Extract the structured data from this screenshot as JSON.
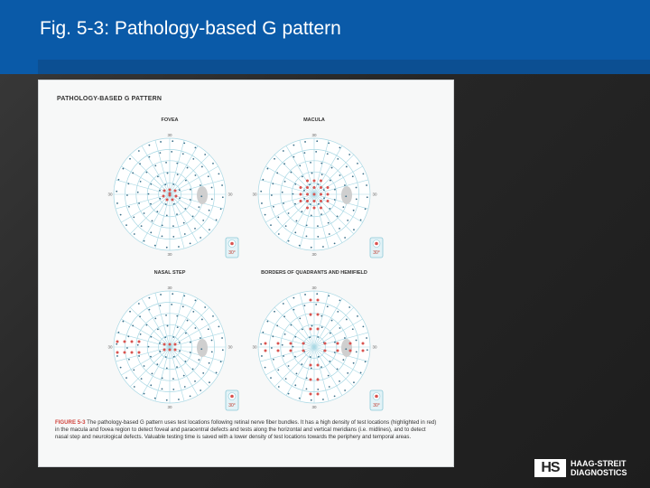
{
  "slide": {
    "title": "Fig. 5-3: Pathology-based G pattern"
  },
  "figure": {
    "heading": "PATHOLOGY-BASED G PATTERN",
    "panels": [
      {
        "label": "FOVEA",
        "range_label": "30°",
        "tick_top": "30",
        "tick_bottom": "30",
        "tick_left": "30",
        "tick_right": "30"
      },
      {
        "label": "MACULA",
        "range_label": "30°",
        "tick_top": "30",
        "tick_bottom": "30",
        "tick_left": "30",
        "tick_right": "30"
      },
      {
        "label": "NASAL STEP",
        "range_label": "30°",
        "tick_top": "30",
        "tick_bottom": "30",
        "tick_left": "30",
        "tick_right": "30"
      },
      {
        "label": "BORDERS OF QUADRANTS AND HEMIFIELD",
        "range_label": "30°",
        "tick_top": "30",
        "tick_bottom": "30",
        "tick_left": "30",
        "tick_right": "30"
      }
    ],
    "caption_figno": "FIGURE 5-3",
    "caption_text": " The pathology-based G pattern uses test locations following retinal nerve fiber bundles. It has a high density of test locations (highlighted in red) in the macula and fovea region to detect foveal and paracentral defects and tests along the horizontal and vertical meridians (i.e. midlines), and to detect nasal step and neurological defects. Valuable testing time is saved with a lower density of test locations towards the periphery and temporal areas.",
    "colors": {
      "highlight": "#d9534f",
      "grid": "#a9d8e4",
      "normal_point": "#3b6e88",
      "blind_spot": "#cfcfcf"
    }
  },
  "logo": {
    "mark": "HS",
    "line1": "HAAG-STREIT",
    "line2": "DIAGNOSTICS"
  }
}
